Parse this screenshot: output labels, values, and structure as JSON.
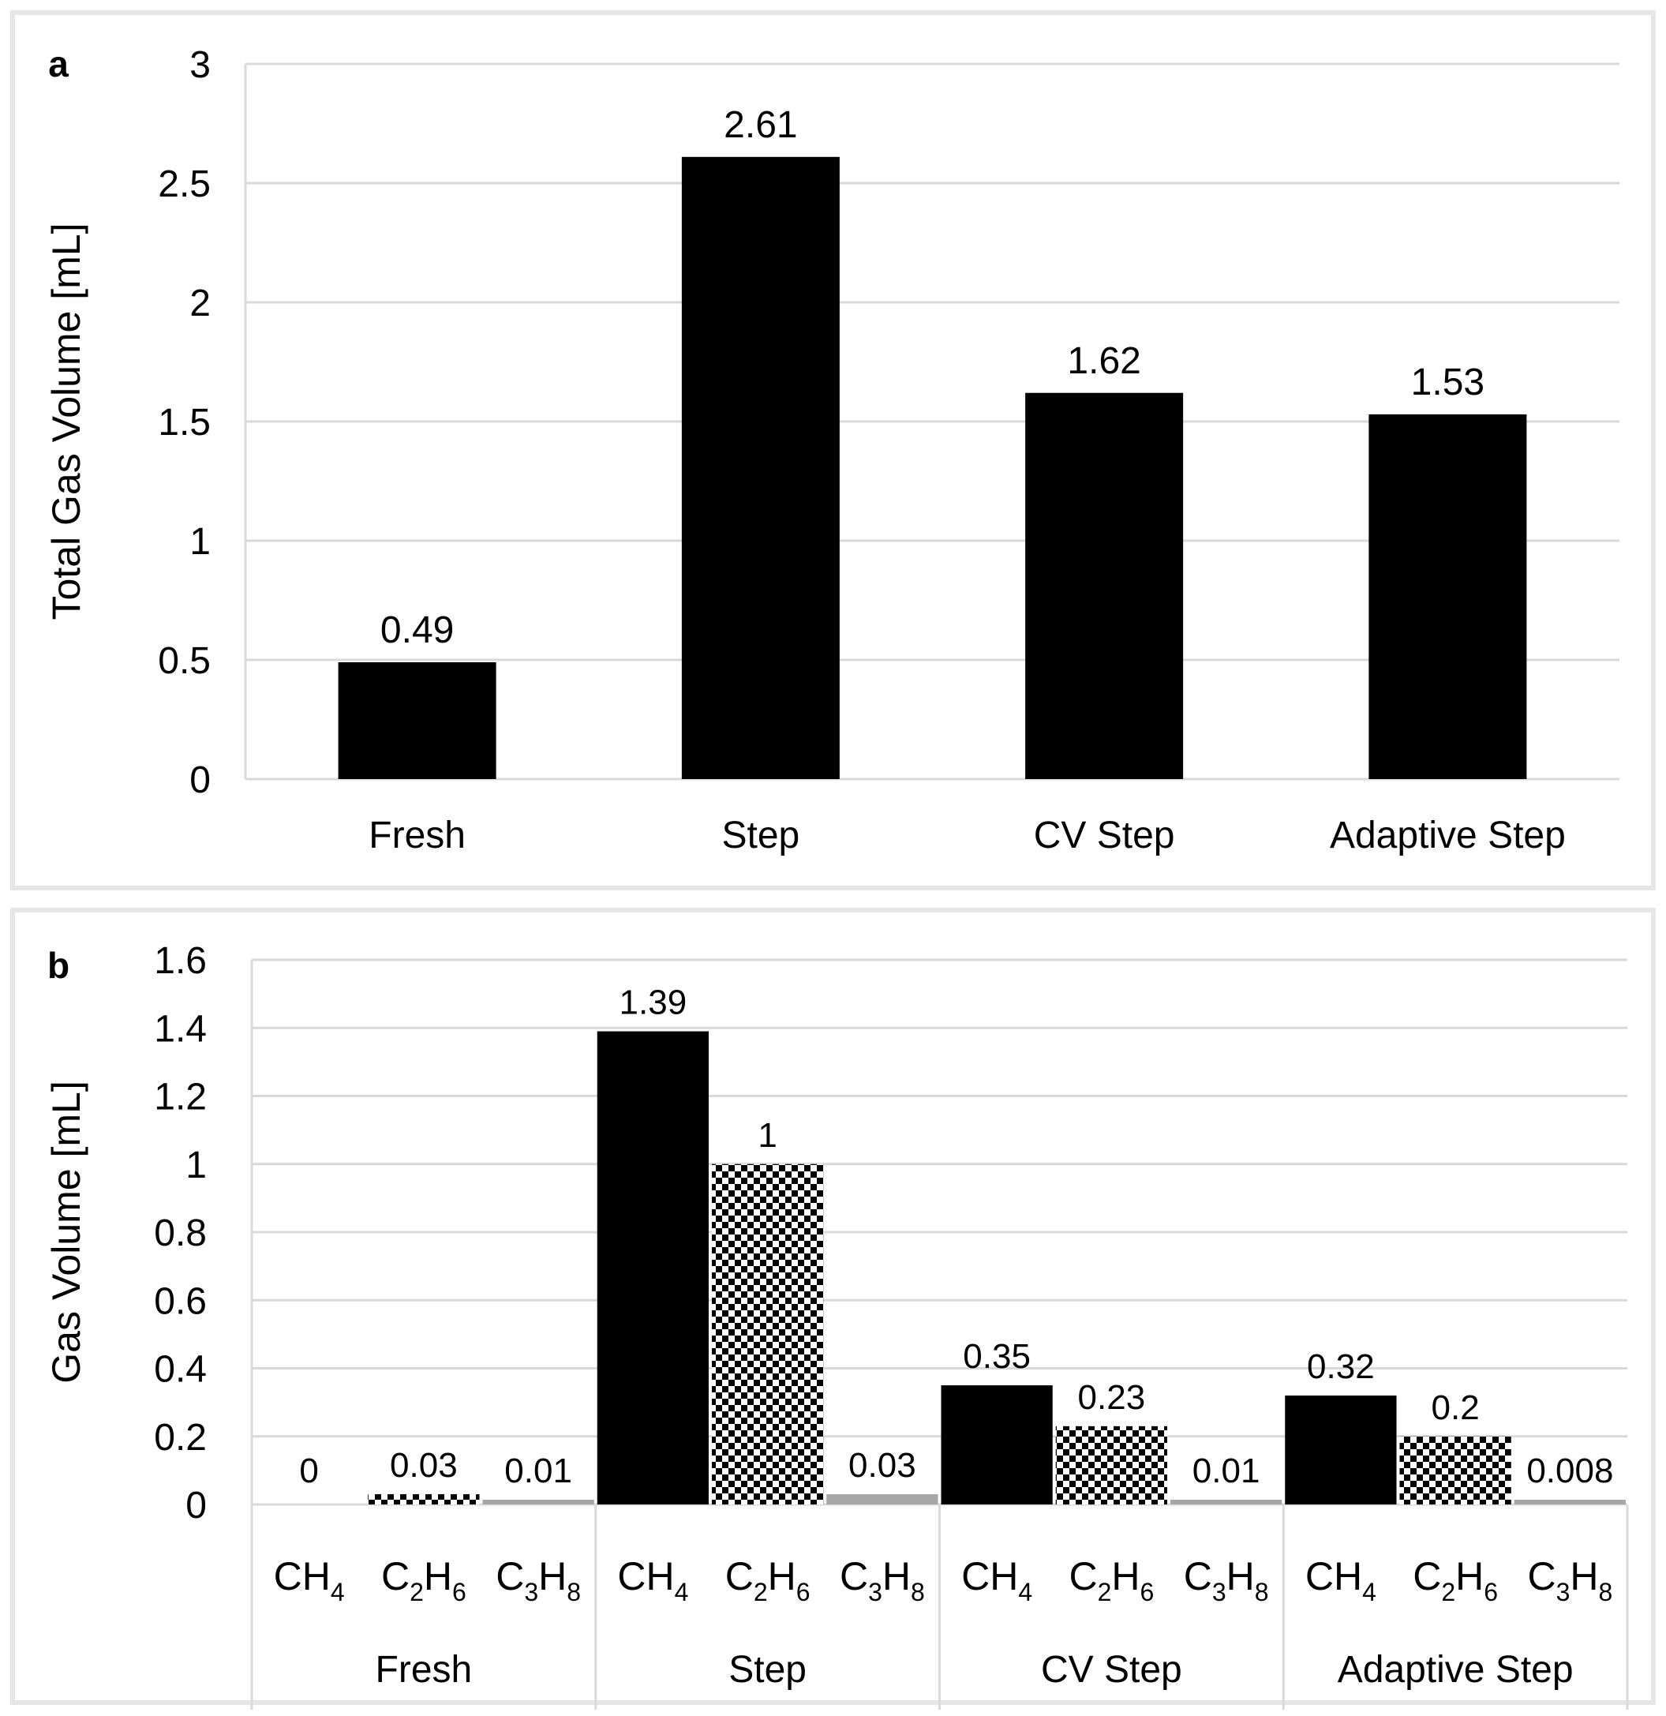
{
  "chart_data": [
    {
      "panel_label": "a",
      "type": "bar",
      "ylabel": "Total Gas Volume [mL]",
      "ylim": [
        0,
        3
      ],
      "yticks": [
        "0",
        "0.5",
        "1",
        "1.5",
        "2",
        "2.5",
        "3"
      ],
      "categories": [
        "Fresh",
        "Step",
        "CV Step",
        "Adaptive Step"
      ],
      "values": [
        0.49,
        2.61,
        1.62,
        1.53
      ],
      "data_labels": [
        "0.49",
        "2.61",
        "1.62",
        "1.53"
      ],
      "bar_color": "#000000",
      "grid": true
    },
    {
      "panel_label": "b",
      "type": "bar",
      "ylabel": "Gas Volume [mL]",
      "ylim": [
        0,
        1.6
      ],
      "yticks": [
        "0",
        "0.2",
        "0.4",
        "0.6",
        "0.8",
        "1",
        "1.2",
        "1.4",
        "1.6"
      ],
      "groups": [
        "Fresh",
        "Step",
        "CV Step",
        "Adaptive Step"
      ],
      "series": [
        {
          "name": "CH4",
          "label_main": "CH",
          "label_sub": "4",
          "pattern": "solid",
          "color": "#000000",
          "values": [
            0,
            1.39,
            0.35,
            0.32
          ],
          "data_labels": [
            "0",
            "1.39",
            "0.35",
            "0.32"
          ]
        },
        {
          "name": "C2H6",
          "label_parts": [
            "C",
            "2",
            "H",
            "6"
          ],
          "pattern": "checkered",
          "color": "#000000",
          "values": [
            0.03,
            1,
            0.23,
            0.2
          ],
          "data_labels": [
            "0.03",
            "1",
            "0.23",
            "0.2"
          ]
        },
        {
          "name": "C3H8",
          "label_parts": [
            "C",
            "3",
            "H",
            "8"
          ],
          "pattern": "solid",
          "color": "#a6a6a6",
          "values": [
            0.01,
            0.03,
            0.01,
            0.008
          ],
          "data_labels": [
            "0.01",
            "0.03",
            "0.01",
            "0.008"
          ]
        }
      ],
      "grid": true
    }
  ]
}
